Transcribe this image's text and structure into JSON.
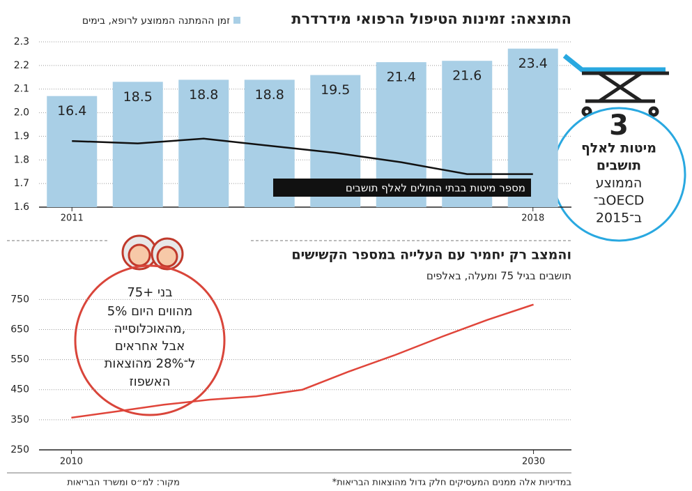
{
  "chart_data": [
    {
      "type": "bar",
      "title": "התוצאה: זמינות הטיפול הרפואי מידרדרת",
      "categories": [
        "2011",
        null,
        null,
        null,
        null,
        null,
        null,
        "2018"
      ],
      "series": [
        {
          "name": "זמן ההמתנה הממוצע לרופא, בימים",
          "type": "bar",
          "axis": "y2",
          "color": "#a9cfe6",
          "values": [
            16.4,
            18.5,
            18.8,
            18.8,
            19.5,
            21.4,
            21.6,
            23.4
          ]
        },
        {
          "name": "מספר מיטות בבתי החולים לאלף תושבים",
          "type": "line",
          "color": "#111111",
          "values": [
            1.88,
            1.87,
            1.89,
            1.86,
            1.83,
            1.79,
            1.74,
            1.74
          ]
        }
      ],
      "ylim": [
        1.6,
        2.3
      ],
      "yticks": [
        1.6,
        1.7,
        1.8,
        1.9,
        {
          "value": 2,
          "label": "2.0"
        },
        2.1,
        2.2,
        2.3
      ],
      "y2lim": [
        0,
        24.4
      ],
      "grid": true,
      "annotation": {
        "number": "3",
        "lines": [
          "מיטות לאלף",
          "תושבים",
          "הממוצע",
          "ב־OECD",
          "ב־2015"
        ]
      }
    },
    {
      "type": "line",
      "title": "והמצב רק יחמיר עם העלייה במספר הקשישים",
      "subtitle": "תושבים בגיל 75 ומעלה, באלפים",
      "x": [
        2010,
        2012,
        2014,
        2016,
        2018,
        2020,
        2022,
        2024,
        2026,
        2028,
        2030
      ],
      "series": [
        {
          "name": null,
          "color": "#e0453a",
          "values": [
            357,
            378,
            400,
            417,
            428,
            450,
            510,
            565,
            625,
            682,
            733
          ]
        }
      ],
      "xlim": [
        2008.6,
        2031.4
      ],
      "xticks": [
        2010,
        2030
      ],
      "ylim": [
        250,
        760
      ],
      "yticks": [
        250,
        350,
        450,
        550,
        650,
        750
      ],
      "grid": true,
      "annotation": {
        "lines": [
          "בני +75",
          "מהווים היום 5%",
          "מהאוכלוסייה,",
          "אבל אחראים",
          "ל־28% מהוצאות",
          "האשפוז"
        ]
      }
    }
  ],
  "footer": {
    "source": "מקור: למ״ס ומשרד הבריאות",
    "note": "*במדיניות אלה ממנים המעסיקים חלק גדול מהוצאות הבריאות"
  }
}
